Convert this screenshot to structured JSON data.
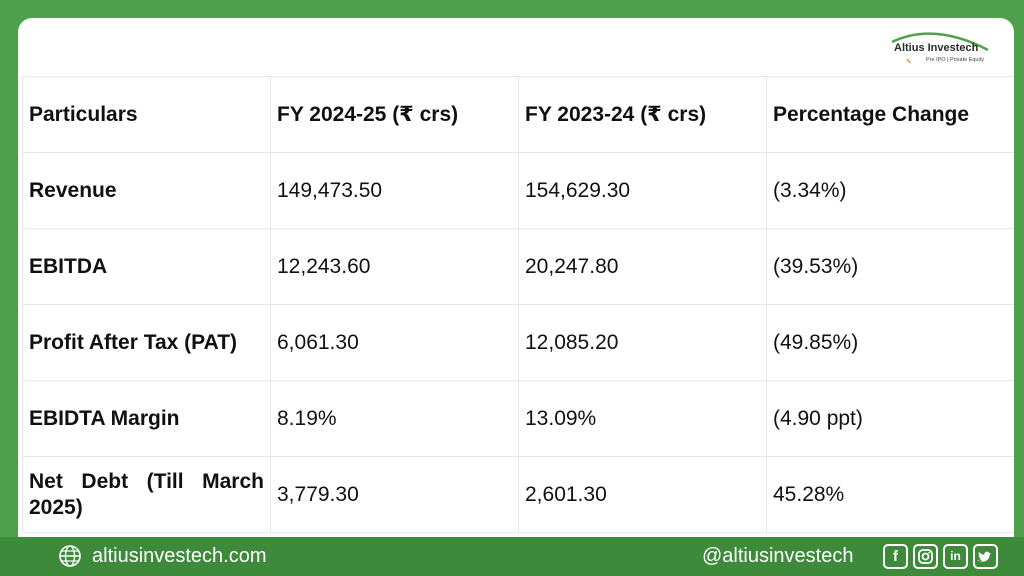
{
  "brand": {
    "name": "Altius Investech",
    "tagline": "Pre IPO | Private Equity",
    "accent": "#4fa04a"
  },
  "table": {
    "headers": [
      "Particulars",
      "FY 2024-25 (₹ crs)",
      "FY 2023-24 (₹ crs)",
      "Percentage Change"
    ],
    "rows": [
      [
        "Revenue",
        "149,473.50",
        "154,629.30",
        "(3.34%)"
      ],
      [
        "EBITDA",
        "12,243.60",
        "20,247.80",
        "(39.53%)"
      ],
      [
        "Profit After Tax (PAT)",
        "6,061.30",
        "12,085.20",
        "(49.85%)"
      ],
      [
        "EBIDTA Margin",
        "8.19%",
        "13.09%",
        "(4.90 ppt)"
      ],
      [
        "Net Debt (Till March 2025)",
        "3,779.30",
        "2,601.30",
        "45.28%"
      ]
    ]
  },
  "footer": {
    "website": "altiusinvestech.com",
    "handle": "@altiusinvestech",
    "social_icons": [
      "facebook-icon",
      "instagram-icon",
      "linkedin-icon",
      "twitter-icon"
    ],
    "background": "#3d8a3b"
  }
}
